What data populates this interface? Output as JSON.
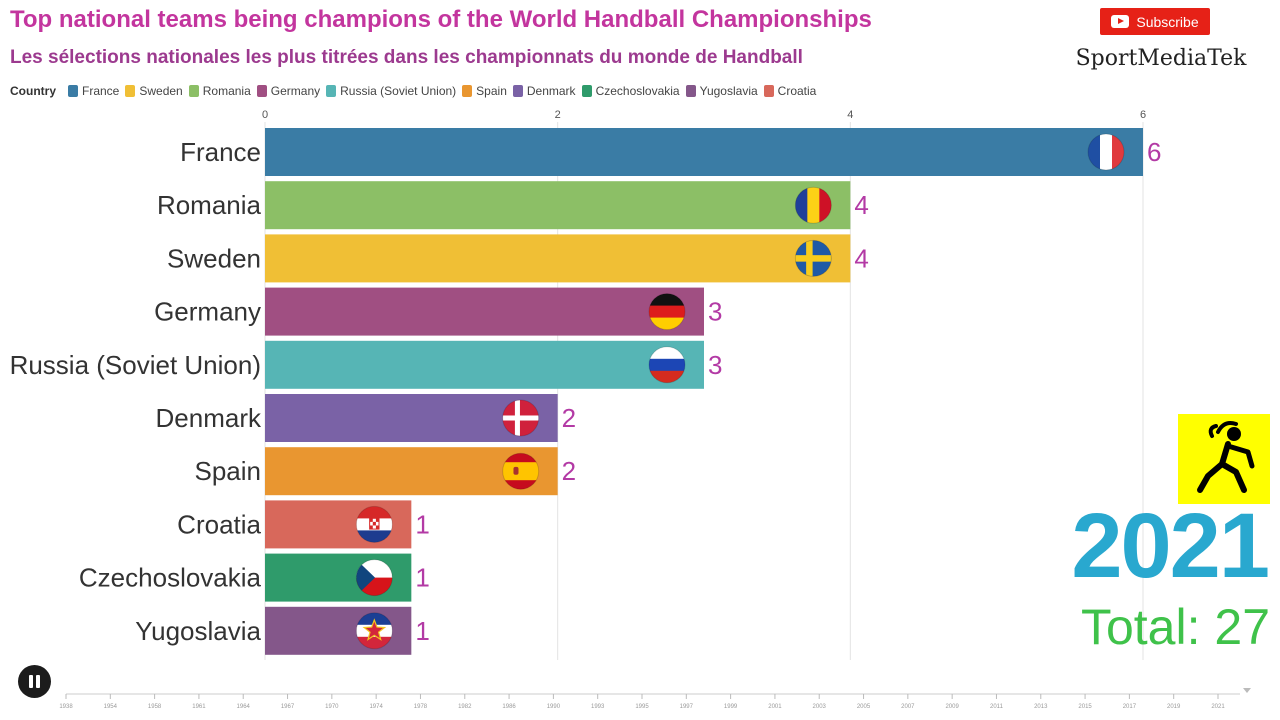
{
  "header": {
    "title": "Top national teams being champions of the World Handball Championships",
    "subtitle": "Les sélections nationales les plus titrées dans les championnats du monde de Handball"
  },
  "legend": {
    "label": "Country",
    "items": [
      {
        "name": "France",
        "color": "#3a7ca5"
      },
      {
        "name": "Sweden",
        "color": "#f0bf35"
      },
      {
        "name": "Romania",
        "color": "#8cbf66"
      },
      {
        "name": "Germany",
        "color": "#a04f82"
      },
      {
        "name": "Russia (Soviet Union)",
        "color": "#56b5b5"
      },
      {
        "name": "Spain",
        "color": "#e99630"
      },
      {
        "name": "Denmark",
        "color": "#7a62a6"
      },
      {
        "name": "Czechoslovakia",
        "color": "#2f9b6b"
      },
      {
        "name": "Yugoslavia",
        "color": "#84578a"
      },
      {
        "name": "Croatia",
        "color": "#d8685b"
      }
    ]
  },
  "youtube": {
    "subscribe_label": "Subscribe"
  },
  "brand": {
    "name": "SportMediaTek"
  },
  "status": {
    "year": "2021",
    "total": "Total: 27"
  },
  "chart_data": {
    "type": "bar",
    "orientation": "horizontal",
    "categories": [
      "France",
      "Romania",
      "Sweden",
      "Germany",
      "Russia (Soviet Union)",
      "Denmark",
      "Spain",
      "Croatia",
      "Czechoslovakia",
      "Yugoslavia"
    ],
    "values": [
      6,
      4,
      4,
      3,
      3,
      2,
      2,
      1,
      1,
      1
    ],
    "colors": [
      "#3a7ca5",
      "#8cbf66",
      "#f0bf35",
      "#a04f82",
      "#56b5b5",
      "#7a62a6",
      "#e99630",
      "#d8685b",
      "#2f9b6b",
      "#84578a"
    ],
    "flags": [
      "france-flag-icon",
      "romania-flag-icon",
      "sweden-flag-icon",
      "germany-flag-icon",
      "russia-flag-icon",
      "denmark-flag-icon",
      "spain-flag-icon",
      "croatia-flag-icon",
      "czech-flag-icon",
      "yugoslavia-flag-icon"
    ],
    "xlim": [
      0,
      6
    ],
    "xticks": [
      0,
      2,
      4,
      6
    ],
    "grid": true,
    "legend_position": "top"
  },
  "timeline": {
    "years": [
      "1938",
      "1954",
      "1958",
      "1961",
      "1964",
      "1967",
      "1970",
      "1974",
      "1978",
      "1982",
      "1986",
      "1990",
      "1993",
      "1995",
      "1997",
      "1999",
      "2001",
      "2003",
      "2005",
      "2007",
      "2009",
      "2011",
      "2013",
      "2015",
      "2017",
      "2019",
      "2021"
    ]
  }
}
